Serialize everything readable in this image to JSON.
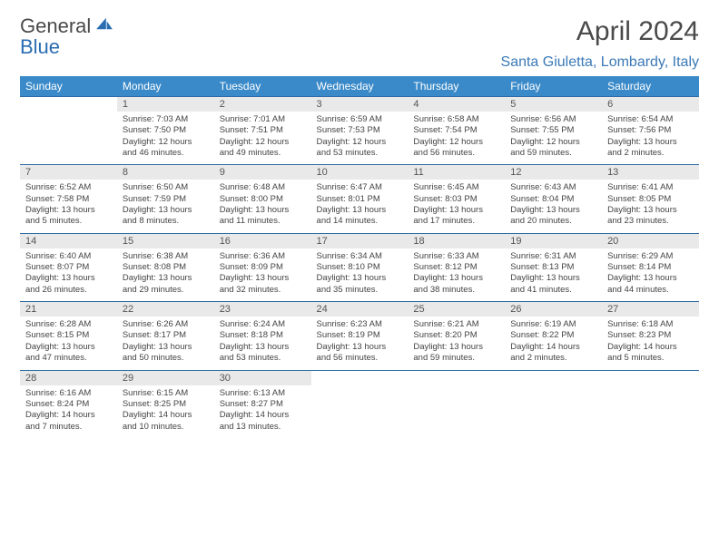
{
  "brand": {
    "part1": "General",
    "part2": "Blue"
  },
  "title": "April 2024",
  "location": "Santa Giuletta, Lombardy, Italy",
  "day_headers": [
    "Sunday",
    "Monday",
    "Tuesday",
    "Wednesday",
    "Thursday",
    "Friday",
    "Saturday"
  ],
  "colors": {
    "header_bg": "#3a8ac9",
    "header_text": "#ffffff",
    "rule": "#2e6aa3",
    "daynum_bg": "#e9e9e9",
    "location_text": "#3a79b7",
    "title_text": "#4a4a4a"
  },
  "weeks": [
    {
      "daynums": [
        "",
        "1",
        "2",
        "3",
        "4",
        "5",
        "6"
      ],
      "cells": [
        null,
        {
          "sunrise": "Sunrise: 7:03 AM",
          "sunset": "Sunset: 7:50 PM",
          "daylight": "Daylight: 12 hours and 46 minutes."
        },
        {
          "sunrise": "Sunrise: 7:01 AM",
          "sunset": "Sunset: 7:51 PM",
          "daylight": "Daylight: 12 hours and 49 minutes."
        },
        {
          "sunrise": "Sunrise: 6:59 AM",
          "sunset": "Sunset: 7:53 PM",
          "daylight": "Daylight: 12 hours and 53 minutes."
        },
        {
          "sunrise": "Sunrise: 6:58 AM",
          "sunset": "Sunset: 7:54 PM",
          "daylight": "Daylight: 12 hours and 56 minutes."
        },
        {
          "sunrise": "Sunrise: 6:56 AM",
          "sunset": "Sunset: 7:55 PM",
          "daylight": "Daylight: 12 hours and 59 minutes."
        },
        {
          "sunrise": "Sunrise: 6:54 AM",
          "sunset": "Sunset: 7:56 PM",
          "daylight": "Daylight: 13 hours and 2 minutes."
        }
      ]
    },
    {
      "daynums": [
        "7",
        "8",
        "9",
        "10",
        "11",
        "12",
        "13"
      ],
      "cells": [
        {
          "sunrise": "Sunrise: 6:52 AM",
          "sunset": "Sunset: 7:58 PM",
          "daylight": "Daylight: 13 hours and 5 minutes."
        },
        {
          "sunrise": "Sunrise: 6:50 AM",
          "sunset": "Sunset: 7:59 PM",
          "daylight": "Daylight: 13 hours and 8 minutes."
        },
        {
          "sunrise": "Sunrise: 6:48 AM",
          "sunset": "Sunset: 8:00 PM",
          "daylight": "Daylight: 13 hours and 11 minutes."
        },
        {
          "sunrise": "Sunrise: 6:47 AM",
          "sunset": "Sunset: 8:01 PM",
          "daylight": "Daylight: 13 hours and 14 minutes."
        },
        {
          "sunrise": "Sunrise: 6:45 AM",
          "sunset": "Sunset: 8:03 PM",
          "daylight": "Daylight: 13 hours and 17 minutes."
        },
        {
          "sunrise": "Sunrise: 6:43 AM",
          "sunset": "Sunset: 8:04 PM",
          "daylight": "Daylight: 13 hours and 20 minutes."
        },
        {
          "sunrise": "Sunrise: 6:41 AM",
          "sunset": "Sunset: 8:05 PM",
          "daylight": "Daylight: 13 hours and 23 minutes."
        }
      ]
    },
    {
      "daynums": [
        "14",
        "15",
        "16",
        "17",
        "18",
        "19",
        "20"
      ],
      "cells": [
        {
          "sunrise": "Sunrise: 6:40 AM",
          "sunset": "Sunset: 8:07 PM",
          "daylight": "Daylight: 13 hours and 26 minutes."
        },
        {
          "sunrise": "Sunrise: 6:38 AM",
          "sunset": "Sunset: 8:08 PM",
          "daylight": "Daylight: 13 hours and 29 minutes."
        },
        {
          "sunrise": "Sunrise: 6:36 AM",
          "sunset": "Sunset: 8:09 PM",
          "daylight": "Daylight: 13 hours and 32 minutes."
        },
        {
          "sunrise": "Sunrise: 6:34 AM",
          "sunset": "Sunset: 8:10 PM",
          "daylight": "Daylight: 13 hours and 35 minutes."
        },
        {
          "sunrise": "Sunrise: 6:33 AM",
          "sunset": "Sunset: 8:12 PM",
          "daylight": "Daylight: 13 hours and 38 minutes."
        },
        {
          "sunrise": "Sunrise: 6:31 AM",
          "sunset": "Sunset: 8:13 PM",
          "daylight": "Daylight: 13 hours and 41 minutes."
        },
        {
          "sunrise": "Sunrise: 6:29 AM",
          "sunset": "Sunset: 8:14 PM",
          "daylight": "Daylight: 13 hours and 44 minutes."
        }
      ]
    },
    {
      "daynums": [
        "21",
        "22",
        "23",
        "24",
        "25",
        "26",
        "27"
      ],
      "cells": [
        {
          "sunrise": "Sunrise: 6:28 AM",
          "sunset": "Sunset: 8:15 PM",
          "daylight": "Daylight: 13 hours and 47 minutes."
        },
        {
          "sunrise": "Sunrise: 6:26 AM",
          "sunset": "Sunset: 8:17 PM",
          "daylight": "Daylight: 13 hours and 50 minutes."
        },
        {
          "sunrise": "Sunrise: 6:24 AM",
          "sunset": "Sunset: 8:18 PM",
          "daylight": "Daylight: 13 hours and 53 minutes."
        },
        {
          "sunrise": "Sunrise: 6:23 AM",
          "sunset": "Sunset: 8:19 PM",
          "daylight": "Daylight: 13 hours and 56 minutes."
        },
        {
          "sunrise": "Sunrise: 6:21 AM",
          "sunset": "Sunset: 8:20 PM",
          "daylight": "Daylight: 13 hours and 59 minutes."
        },
        {
          "sunrise": "Sunrise: 6:19 AM",
          "sunset": "Sunset: 8:22 PM",
          "daylight": "Daylight: 14 hours and 2 minutes."
        },
        {
          "sunrise": "Sunrise: 6:18 AM",
          "sunset": "Sunset: 8:23 PM",
          "daylight": "Daylight: 14 hours and 5 minutes."
        }
      ]
    },
    {
      "daynums": [
        "28",
        "29",
        "30",
        "",
        "",
        "",
        ""
      ],
      "cells": [
        {
          "sunrise": "Sunrise: 6:16 AM",
          "sunset": "Sunset: 8:24 PM",
          "daylight": "Daylight: 14 hours and 7 minutes."
        },
        {
          "sunrise": "Sunrise: 6:15 AM",
          "sunset": "Sunset: 8:25 PM",
          "daylight": "Daylight: 14 hours and 10 minutes."
        },
        {
          "sunrise": "Sunrise: 6:13 AM",
          "sunset": "Sunset: 8:27 PM",
          "daylight": "Daylight: 14 hours and 13 minutes."
        },
        null,
        null,
        null,
        null
      ]
    }
  ]
}
